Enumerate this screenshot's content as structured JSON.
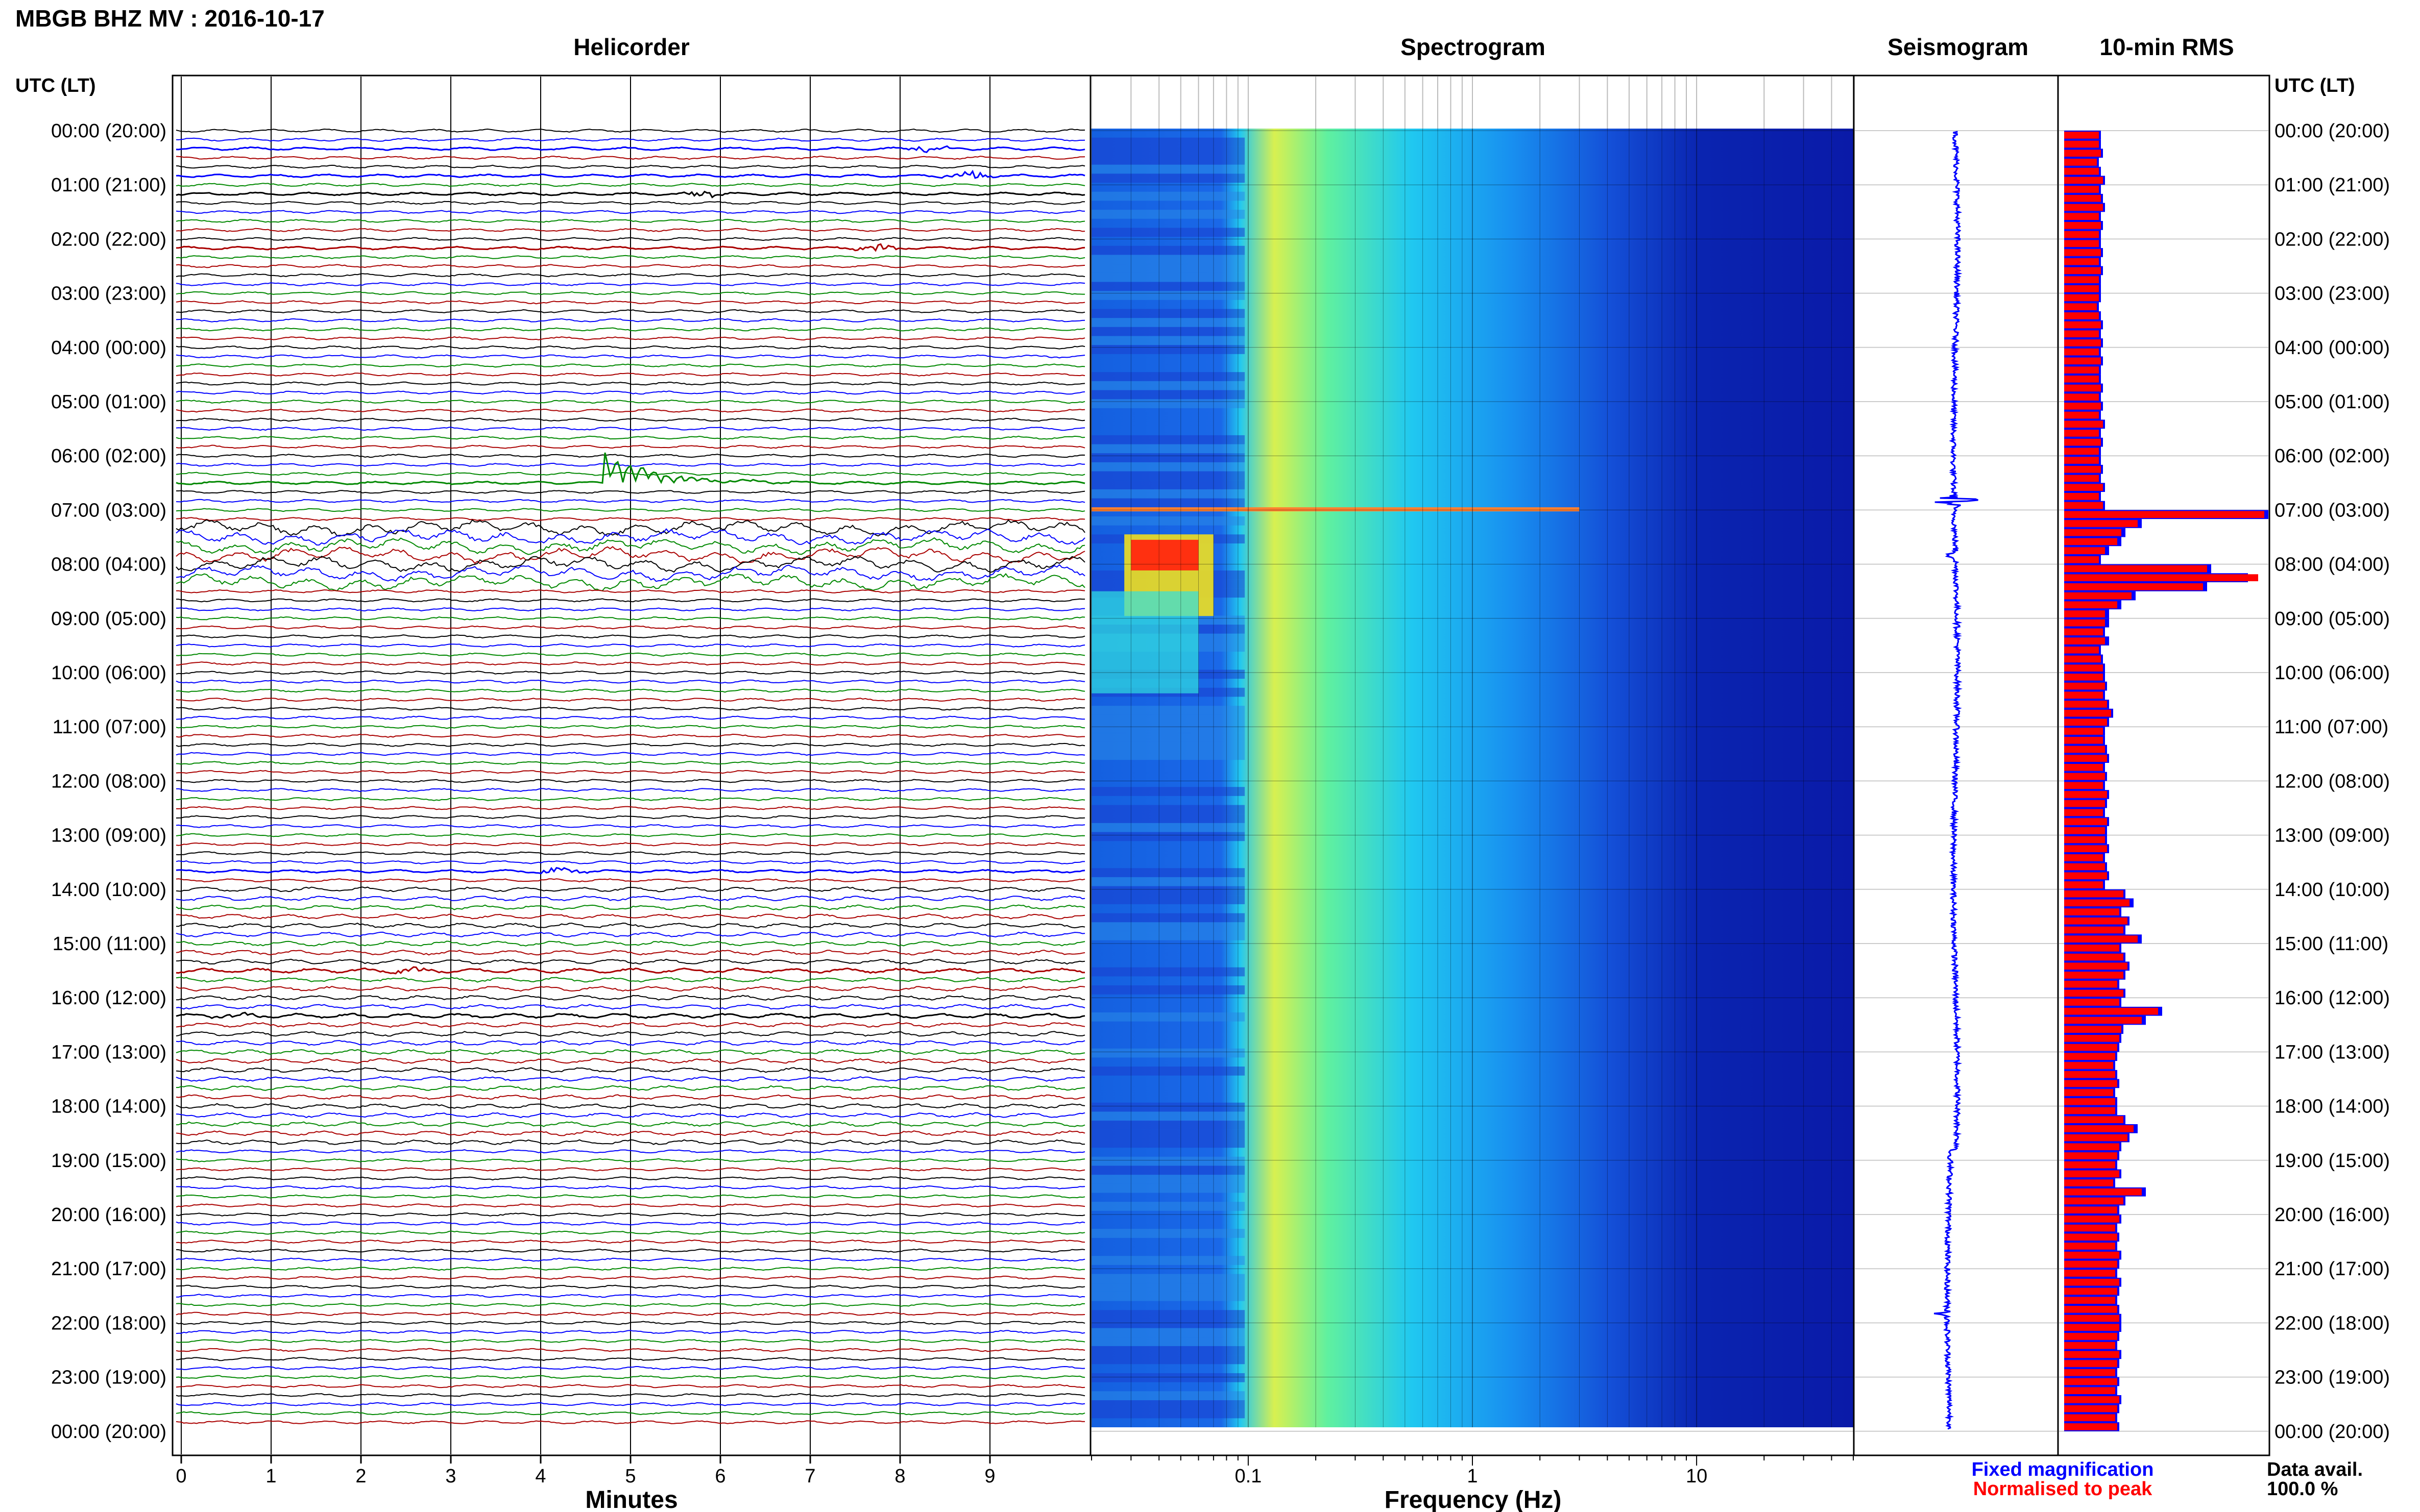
{
  "header": {
    "title": "MBGB BHZ MV : 2016-10-17",
    "utc_lt_left": "UTC (LT)",
    "utc_lt_right": "UTC (LT)"
  },
  "panels": {
    "helicorder": "Helicorder",
    "spectrogram": "Spectrogram",
    "seismogram": "Seismogram",
    "rms": "10-min RMS"
  },
  "footer": {
    "helicorder_xlabel": "Minutes",
    "spectrogram_xlabel": "Frequency (Hz)",
    "legend_fixed": "Fixed magnification",
    "legend_normalised": "Normalised to peak",
    "data_avail_label": "Data avail.",
    "data_avail_value": "100.0 %"
  },
  "colors": {
    "fixed": "#0000ff",
    "normalised": "#ff0000",
    "trace_cycle": [
      "#000000",
      "#0000ff",
      "#008800",
      "#aa0000"
    ],
    "spectrogram_background": "#0a1aa8"
  },
  "time_labels": [
    "00:00 (20:00)",
    "01:00 (21:00)",
    "02:00 (22:00)",
    "03:00 (23:00)",
    "04:00 (00:00)",
    "05:00 (01:00)",
    "06:00 (02:00)",
    "07:00 (03:00)",
    "08:00 (04:00)",
    "09:00 (05:00)",
    "10:00 (06:00)",
    "11:00 (07:00)",
    "12:00 (08:00)",
    "13:00 (09:00)",
    "14:00 (10:00)",
    "15:00 (11:00)",
    "16:00 (12:00)",
    "17:00 (13:00)",
    "18:00 (14:00)",
    "19:00 (15:00)",
    "20:00 (16:00)",
    "21:00 (17:00)",
    "22:00 (18:00)",
    "23:00 (19:00)",
    "00:00 (20:00)"
  ],
  "chart_data": [
    {
      "type": "line",
      "panel": "helicorder",
      "title": "Helicorder",
      "xlabel": "Minutes",
      "x_ticks": [
        0,
        1,
        2,
        3,
        4,
        5,
        6,
        7,
        8,
        9
      ],
      "xlim": [
        0,
        10
      ],
      "rows_per_hour": 6,
      "traces": 144,
      "events": [
        {
          "time": "00:20",
          "minute": 8.3,
          "color": "blue"
        },
        {
          "time": "00:50",
          "minute": 8.8,
          "color": "blue"
        },
        {
          "time": "01:10",
          "minute": 5.8,
          "color": "black"
        },
        {
          "time": "02:10",
          "minute": 7.7,
          "color": "red"
        },
        {
          "time": "06:30",
          "minute": 4.7,
          "color": "green"
        },
        {
          "time": "13:40",
          "minute": 4.2,
          "color": "blue"
        },
        {
          "time": "15:30",
          "minute": 2.5,
          "color": "red"
        },
        {
          "time": "16:20",
          "minute": 0.7,
          "color": "black"
        }
      ]
    },
    {
      "type": "heatmap",
      "panel": "spectrogram",
      "title": "Spectrogram",
      "xlabel": "Frequency (Hz)",
      "x_scale": "log",
      "xlim": [
        0.02,
        50
      ],
      "x_tick_labels": [
        "0.1",
        "1",
        "10"
      ],
      "colormap": "jet"
    },
    {
      "type": "line",
      "panel": "seismogram",
      "title": "Seismogram",
      "peaks": [
        {
          "time": "06:50",
          "amplitude": 1.0
        },
        {
          "time": "07:50",
          "amplitude": 0.25
        },
        {
          "time": "21:50",
          "amplitude": 0.2
        }
      ]
    },
    {
      "type": "bar",
      "panel": "rms",
      "title": "10-min RMS",
      "series": [
        {
          "name": "Fixed magnification",
          "values": [
            0.18,
            0.18,
            0.19,
            0.17,
            0.18,
            0.2,
            0.18,
            0.19,
            0.2,
            0.18,
            0.19,
            0.18,
            0.18,
            0.19,
            0.18,
            0.19,
            0.18,
            0.18,
            0.18,
            0.17,
            0.18,
            0.19,
            0.18,
            0.19,
            0.18,
            0.19,
            0.18,
            0.18,
            0.19,
            0.18,
            0.19,
            0.18,
            0.2,
            0.18,
            0.19,
            0.18,
            0.18,
            0.19,
            0.18,
            0.2,
            0.18,
            0.2,
            1.0,
            0.38,
            0.3,
            0.28,
            0.22,
            0.18,
            0.72,
            0.9,
            0.7,
            0.35,
            0.28,
            0.22,
            0.22,
            0.2,
            0.22,
            0.18,
            0.19,
            0.2,
            0.2,
            0.21,
            0.2,
            0.22,
            0.24,
            0.22,
            0.2,
            0.2,
            0.21,
            0.22,
            0.2,
            0.21,
            0.2,
            0.22,
            0.21,
            0.2,
            0.22,
            0.21,
            0.21,
            0.22,
            0.2,
            0.21,
            0.22,
            0.2,
            0.3,
            0.34,
            0.28,
            0.32,
            0.3,
            0.38,
            0.28,
            0.3,
            0.32,
            0.3,
            0.27,
            0.3,
            0.28,
            0.48,
            0.4,
            0.29,
            0.28,
            0.27,
            0.26,
            0.25,
            0.26,
            0.27,
            0.25,
            0.26,
            0.26,
            0.3,
            0.36,
            0.32,
            0.28,
            0.27,
            0.26,
            0.28,
            0.25,
            0.4,
            0.3,
            0.27,
            0.28,
            0.26,
            0.27,
            0.26,
            0.28,
            0.27,
            0.26,
            0.28,
            0.27,
            0.26,
            0.27,
            0.28,
            0.28,
            0.27,
            0.26,
            0.28,
            0.27,
            0.26,
            0.27,
            0.26,
            0.28,
            0.27,
            0.26,
            0.27
          ]
        },
        {
          "name": "Normalised to peak",
          "values": [
            0.17,
            0.17,
            0.18,
            0.16,
            0.17,
            0.19,
            0.17,
            0.18,
            0.19,
            0.17,
            0.18,
            0.17,
            0.17,
            0.18,
            0.17,
            0.18,
            0.17,
            0.17,
            0.17,
            0.16,
            0.17,
            0.18,
            0.17,
            0.18,
            0.17,
            0.18,
            0.17,
            0.17,
            0.18,
            0.17,
            0.18,
            0.17,
            0.19,
            0.17,
            0.18,
            0.17,
            0.17,
            0.18,
            0.17,
            0.19,
            0.17,
            0.19,
            0.98,
            0.36,
            0.28,
            0.26,
            0.2,
            0.17,
            0.7,
            0.95,
            0.68,
            0.33,
            0.26,
            0.2,
            0.2,
            0.19,
            0.2,
            0.17,
            0.18,
            0.19,
            0.19,
            0.2,
            0.19,
            0.21,
            0.23,
            0.21,
            0.19,
            0.19,
            0.2,
            0.21,
            0.19,
            0.2,
            0.19,
            0.21,
            0.2,
            0.19,
            0.21,
            0.2,
            0.2,
            0.21,
            0.19,
            0.2,
            0.21,
            0.19,
            0.29,
            0.32,
            0.27,
            0.31,
            0.29,
            0.36,
            0.27,
            0.29,
            0.31,
            0.29,
            0.26,
            0.29,
            0.27,
            0.46,
            0.38,
            0.28,
            0.27,
            0.26,
            0.25,
            0.24,
            0.25,
            0.26,
            0.24,
            0.25,
            0.25,
            0.29,
            0.34,
            0.31,
            0.27,
            0.26,
            0.25,
            0.27,
            0.24,
            0.38,
            0.29,
            0.26,
            0.27,
            0.25,
            0.26,
            0.25,
            0.27,
            0.26,
            0.25,
            0.27,
            0.26,
            0.25,
            0.26,
            0.27,
            0.27,
            0.26,
            0.25,
            0.27,
            0.26,
            0.25,
            0.26,
            0.25,
            0.27,
            0.26,
            0.25,
            0.26
          ]
        }
      ]
    }
  ]
}
